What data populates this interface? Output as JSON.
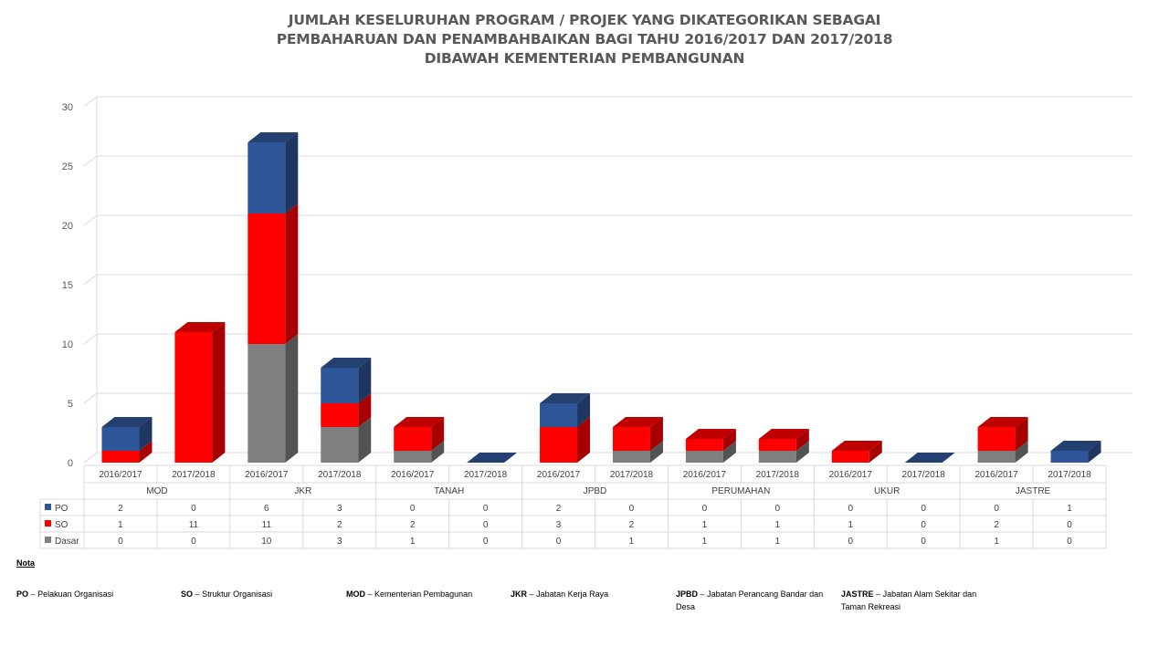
{
  "title": {
    "line1": "JUMLAH KESELURUHAN PROGRAM / PROJEK YANG DIKATEGORIKAN SEBAGAI",
    "line2": "PEMBAHARUAN DAN PENAMBAHBAIKAN BAGI TAHU 2016/2017 DAN 2017/2018",
    "line3": "DIBAWAH KEMENTERIAN PEMBANGUNAN"
  },
  "chart_data": {
    "type": "bar",
    "stacked": true,
    "three_d": true,
    "grid": true,
    "ylim": [
      0,
      30
    ],
    "yticks": [
      0,
      5,
      10,
      15,
      20,
      25,
      30
    ],
    "groups": [
      "MOD",
      "JKR",
      "TANAH",
      "JPBD",
      "PERUMAHAN",
      "UKUR",
      "JASTRE"
    ],
    "categories": [
      "2016/2017",
      "2017/2018",
      "2016/2017",
      "2017/2018",
      "2016/2017",
      "2017/2018",
      "2016/2017",
      "2017/2018",
      "2016/2017",
      "2017/2018",
      "2016/2017",
      "2017/2018",
      "2016/2017",
      "2017/2018"
    ],
    "series": [
      {
        "name": "PO",
        "color": "#2e5597",
        "values": [
          2,
          0,
          6,
          3,
          0,
          0,
          2,
          0,
          0,
          0,
          0,
          0,
          0,
          1
        ]
      },
      {
        "name": "SO",
        "color": "#ff0000",
        "values": [
          1,
          11,
          11,
          2,
          2,
          0,
          3,
          2,
          1,
          1,
          1,
          0,
          2,
          0
        ]
      },
      {
        "name": "Dasar",
        "color": "#7f7f7f",
        "values": [
          0,
          0,
          10,
          3,
          1,
          0,
          0,
          1,
          1,
          1,
          0,
          0,
          1,
          0
        ]
      }
    ],
    "legend_position": "data-table"
  },
  "notes": {
    "heading": "Nota",
    "items": [
      {
        "abbr": "PO",
        "text": "Pelakuan Organisasi"
      },
      {
        "abbr": "SO",
        "text": "Struktur Organisasi"
      },
      {
        "abbr": "MOD",
        "text": "Kementerian Pembagunan"
      },
      {
        "abbr": "JKR",
        "text": "Jabatan Kerja Raya"
      },
      {
        "abbr": "JPBD",
        "text": "Jabatan Perancang Bandar dan Desa"
      },
      {
        "abbr": "JASTRE",
        "text": "Jabatan Alam Sekitar dan Taman Rekreasi"
      }
    ],
    "dash": "–"
  }
}
